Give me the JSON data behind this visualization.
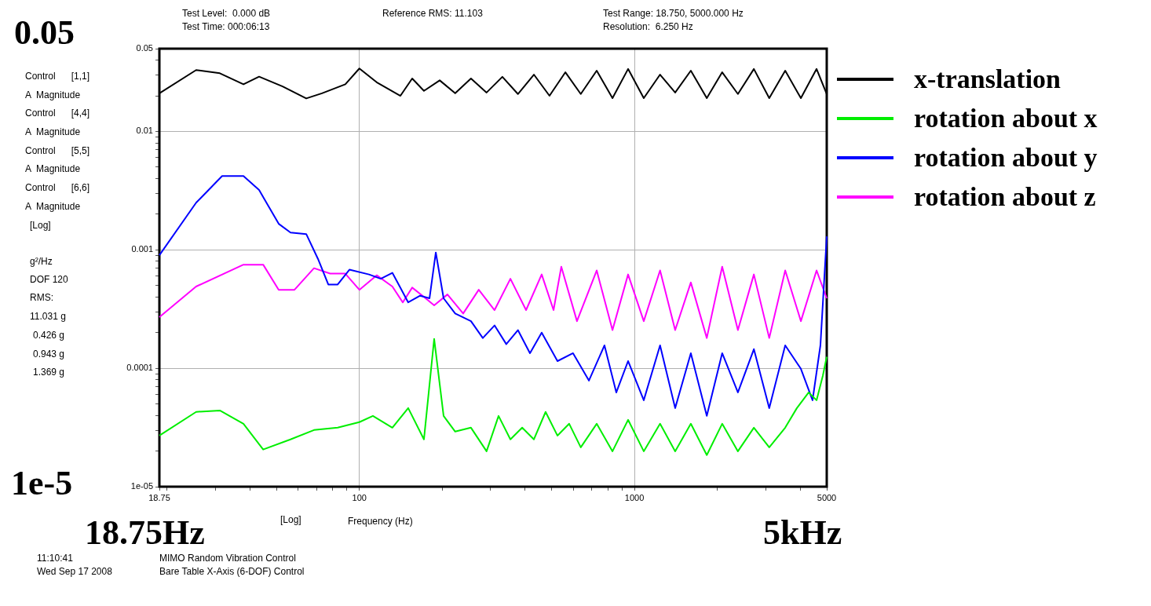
{
  "chart_data": {
    "type": "line",
    "xlabel": "Frequency (Hz)",
    "log": "xy",
    "grid": true,
    "legend": "right",
    "marker": "none",
    "xlim": [
      18.75,
      5000
    ],
    "ylim": [
      1e-05,
      0.05
    ],
    "xticks": [
      18.75,
      {
        "value": 20,
        "label": null
      },
      {
        "value": 30,
        "label": null
      },
      {
        "value": 40,
        "label": null
      },
      {
        "value": 50,
        "label": null
      },
      {
        "value": 60,
        "label": null
      },
      {
        "value": 70,
        "label": null
      },
      {
        "value": 80,
        "label": null
      },
      {
        "value": 90,
        "label": null
      },
      100,
      {
        "value": 200,
        "label": null
      },
      {
        "value": 300,
        "label": null
      },
      {
        "value": 400,
        "label": null
      },
      {
        "value": 500,
        "label": null
      },
      {
        "value": 600,
        "label": null
      },
      {
        "value": 700,
        "label": null
      },
      {
        "value": 800,
        "label": null
      },
      {
        "value": 900,
        "label": null
      },
      1000,
      {
        "value": 2000,
        "label": null
      },
      {
        "value": 3000,
        "label": null
      },
      {
        "value": 4000,
        "label": null
      },
      5000
    ],
    "yticks": [
      {
        "value": 1e-05,
        "label": "1e-05"
      },
      {
        "value": 2e-05,
        "label": null
      },
      {
        "value": 3e-05,
        "label": null
      },
      {
        "value": 4e-05,
        "label": null
      },
      {
        "value": 5e-05,
        "label": null
      },
      {
        "value": 6e-05,
        "label": null
      },
      {
        "value": 7e-05,
        "label": null
      },
      {
        "value": 8e-05,
        "label": null
      },
      {
        "value": 9e-05,
        "label": null
      },
      0.0001,
      {
        "value": 0.0002,
        "label": null
      },
      {
        "value": 0.0003,
        "label": null
      },
      {
        "value": 0.0004,
        "label": null
      },
      {
        "value": 0.0005,
        "label": null
      },
      {
        "value": 0.0006,
        "label": null
      },
      {
        "value": 0.0007,
        "label": null
      },
      {
        "value": 0.0008,
        "label": null
      },
      {
        "value": 0.0009,
        "label": null
      },
      0.001,
      {
        "value": 0.002,
        "label": null
      },
      {
        "value": 0.003,
        "label": null
      },
      {
        "value": 0.004,
        "label": null
      },
      {
        "value": 0.005,
        "label": null
      },
      {
        "value": 0.006,
        "label": null
      },
      {
        "value": 0.007,
        "label": null
      },
      {
        "value": 0.008,
        "label": null
      },
      {
        "value": 0.009,
        "label": null
      },
      0.01,
      {
        "value": 0.02,
        "label": null
      },
      {
        "value": 0.03,
        "label": null
      },
      {
        "value": 0.04,
        "label": null
      },
      0.05
    ],
    "series": [
      {
        "name": "x-translation",
        "color": "#000000",
        "x": [
          18.75,
          25.5,
          31.1,
          37.9,
          43.2,
          52.6,
          64.1,
          73.1,
          88.9,
          100,
          115.6,
          141,
          155.6,
          171.7,
          195.9,
          223,
          254.5,
          290,
          331,
          377,
          431,
          491,
          561,
          638,
          729,
          832,
          948,
          1081,
          1239,
          1406,
          1603,
          1832,
          2084,
          2377,
          2717,
          3090,
          3532,
          4027,
          4592,
          5000
        ],
        "values": [
          0.021,
          0.033,
          0.031,
          0.025,
          0.029,
          0.024,
          0.019,
          0.021,
          0.025,
          0.034,
          0.026,
          0.02,
          0.028,
          0.022,
          0.027,
          0.021,
          0.028,
          0.0213,
          0.0289,
          0.0207,
          0.0302,
          0.02,
          0.0316,
          0.0207,
          0.0326,
          0.0191,
          0.0337,
          0.0191,
          0.0302,
          0.0213,
          0.0326,
          0.0191,
          0.0316,
          0.0207,
          0.0337,
          0.0191,
          0.0326,
          0.0191,
          0.0337,
          0.0207
        ]
      },
      {
        "name": "rotation about x",
        "color": "#00ee00",
        "x": [
          18.75,
          25.5,
          31.1,
          37.9,
          44.7,
          56.2,
          68.4,
          83.4,
          100,
          112,
          131.8,
          150.5,
          171.7,
          187,
          202.4,
          223,
          254.5,
          290,
          320.6,
          354,
          390.6,
          431,
          475.3,
          524.8,
          579,
          638,
          729,
          832,
          948,
          1081,
          1239,
          1406,
          1603,
          1832,
          2084,
          2377,
          2717,
          3090,
          3532,
          3894,
          4299,
          4592,
          4840,
          5000
        ],
        "values": [
          2.7e-05,
          4.28e-05,
          4.4e-05,
          3.4e-05,
          2.06e-05,
          2.51e-05,
          3.01e-05,
          3.15e-05,
          3.51e-05,
          3.96e-05,
          3.15e-05,
          4.61e-05,
          2.51e-05,
          0.000177,
          3.96e-05,
          2.92e-05,
          3.15e-05,
          1.99e-05,
          3.96e-05,
          2.51e-05,
          3.15e-05,
          2.51e-05,
          4.28e-05,
          2.7e-05,
          3.4e-05,
          2.15e-05,
          3.4e-05,
          1.99e-05,
          3.67e-05,
          1.99e-05,
          3.4e-05,
          1.99e-05,
          3.4e-05,
          1.85e-05,
          3.4e-05,
          1.99e-05,
          3.15e-05,
          2.15e-05,
          3.15e-05,
          4.61e-05,
          6.25e-05,
          5.37e-05,
          8.66e-05,
          0.000125
        ]
      },
      {
        "name": "rotation about y",
        "color": "#0000ff",
        "x": [
          18.75,
          25.5,
          31.7,
          37.9,
          43.2,
          50.9,
          56.2,
          64.1,
          70.7,
          77.1,
          83.4,
          92,
          108.4,
          119.6,
          131.8,
          150.5,
          166.3,
          179.9,
          189.6,
          202.4,
          223,
          254.5,
          281,
          310,
          342,
          377,
          417,
          460,
          525,
          598,
          683,
          778,
          859,
          948,
          1081,
          1239,
          1406,
          1603,
          1832,
          2084,
          2377,
          2717,
          3090,
          3532,
          4027,
          4440,
          4742,
          5000
        ],
        "values": [
          0.0009,
          0.0025,
          0.0042,
          0.0042,
          0.0032,
          0.00166,
          0.0014,
          0.00136,
          0.00084,
          0.00051,
          0.00051,
          0.00068,
          0.00062,
          0.00057,
          0.00064,
          0.00036,
          0.00041,
          0.00039,
          0.00095,
          0.00039,
          0.00029,
          0.00025,
          0.00018,
          0.00023,
          0.00016,
          0.00021,
          0.000134,
          0.0002,
          0.000115,
          0.000134,
          7.87e-05,
          0.000156,
          6.25e-05,
          0.000115,
          5.37e-05,
          0.000156,
          4.61e-05,
          0.000134,
          3.96e-05,
          0.000134,
          6.25e-05,
          0.000145,
          4.61e-05,
          0.000156,
          9.9e-05,
          5.37e-05,
          0.000156,
          0.0013
        ]
      },
      {
        "name": "rotation about z",
        "color": "#ff00ff",
        "x": [
          18.75,
          25.5,
          37.9,
          44.7,
          50.9,
          58.1,
          68.4,
          78.3,
          88.9,
          100,
          115.6,
          131.8,
          143.8,
          155.6,
          171.7,
          187,
          209,
          238.4,
          271.6,
          310,
          354,
          403.6,
          460,
          508,
          542,
          618,
          729,
          832,
          948,
          1081,
          1239,
          1406,
          1603,
          1832,
          2084,
          2377,
          2717,
          3090,
          3532,
          4027,
          4592,
          5000
        ],
        "values": [
          0.00027,
          0.00049,
          0.00075,
          0.00075,
          0.00046,
          0.00046,
          0.0007,
          0.00063,
          0.00063,
          0.00046,
          0.00061,
          0.00049,
          0.00036,
          0.00048,
          0.0004,
          0.00034,
          0.00042,
          0.00029,
          0.00046,
          0.00031,
          0.00057,
          0.00031,
          0.00062,
          0.00031,
          0.00072,
          0.00025,
          0.00067,
          0.00021,
          0.00062,
          0.00025,
          0.00067,
          0.00021,
          0.00053,
          0.00018,
          0.00072,
          0.00021,
          0.00062,
          0.00018,
          0.00067,
          0.00025,
          0.00067,
          0.00039
        ]
      }
    ],
    "annotations": [
      "Test Level:  0.000 dB",
      "Test Time: 000:06:13",
      "Reference RMS: 11.103",
      "Test Range: 18.750, 5000.000 Hz",
      "Resolution:  6.250 Hz",
      "0.05",
      "Control      [1,1]",
      "A  Magnitude",
      "Control      [4,4]",
      "A  Magnitude",
      "Control      [5,5]",
      "A  Magnitude",
      "Control      [6,6]",
      "A  Magnitude",
      "[Log]",
      "g²/Hz",
      "DOF 120",
      "RMS:",
      "11.031 g",
      "0.426 g",
      "0.943 g",
      "1.369 g",
      "1e-5",
      "[Log]",
      "18.75Hz",
      "5kHz",
      "11:10:41",
      "Wed Sep 17 2008",
      "MIMO Random Vibration Control",
      "Bare Table X-Axis (6-DOF) Control"
    ]
  }
}
